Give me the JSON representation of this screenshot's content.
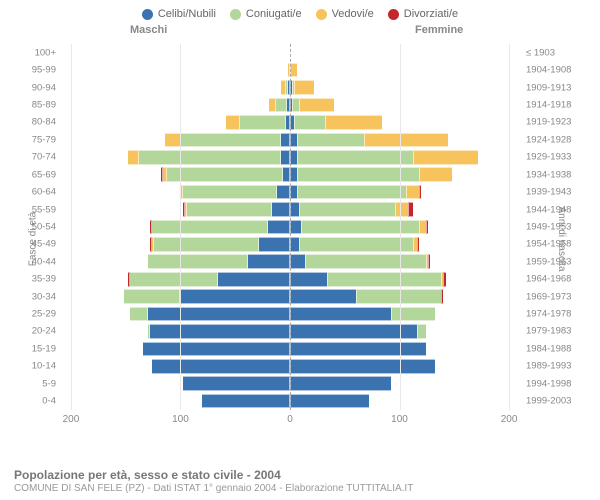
{
  "legend": [
    {
      "label": "Celibi/Nubili",
      "color": "#3b73b0"
    },
    {
      "label": "Coniugati/e",
      "color": "#b3d69b"
    },
    {
      "label": "Vedovi/e",
      "color": "#f7c35c"
    },
    {
      "label": "Divorziati/e",
      "color": "#c1282d"
    }
  ],
  "headers": {
    "male": "Maschi",
    "female": "Femmine",
    "year": "≤ 1903"
  },
  "axis_labels": {
    "left": "Fasce di età",
    "right": "Anni di nascita"
  },
  "colors": {
    "celibi": "#3b73b0",
    "coniugati": "#b3d69b",
    "vedovi": "#f7c35c",
    "divorziati": "#c1282d",
    "grid": "#e8e8e8",
    "center": "#aaaaaa",
    "text": "#888888",
    "bg": "#ffffff"
  },
  "x_ticks": [
    200,
    100,
    0,
    100,
    200
  ],
  "x_max": 210,
  "rows": [
    {
      "age": "100+",
      "year": "≤ 1903",
      "m": [
        0,
        0,
        0,
        0
      ],
      "f": [
        0,
        0,
        0,
        0
      ]
    },
    {
      "age": "95-99",
      "year": "1904-1908",
      "m": [
        0,
        0,
        2,
        0
      ],
      "f": [
        0,
        0,
        6,
        0
      ]
    },
    {
      "age": "90-94",
      "year": "1909-1913",
      "m": [
        2,
        2,
        4,
        0
      ],
      "f": [
        2,
        2,
        18,
        0
      ]
    },
    {
      "age": "85-89",
      "year": "1914-1918",
      "m": [
        3,
        10,
        6,
        0
      ],
      "f": [
        2,
        6,
        32,
        0
      ]
    },
    {
      "age": "80-84",
      "year": "1919-1923",
      "m": [
        4,
        42,
        12,
        0
      ],
      "f": [
        4,
        28,
        52,
        0
      ]
    },
    {
      "age": "75-79",
      "year": "1924-1928",
      "m": [
        8,
        92,
        14,
        0
      ],
      "f": [
        6,
        62,
        76,
        0
      ]
    },
    {
      "age": "70-74",
      "year": "1929-1933",
      "m": [
        8,
        130,
        10,
        0
      ],
      "f": [
        6,
        106,
        60,
        0
      ]
    },
    {
      "age": "65-69",
      "year": "1934-1938",
      "m": [
        6,
        106,
        4,
        2
      ],
      "f": [
        6,
        112,
        30,
        0
      ]
    },
    {
      "age": "60-64",
      "year": "1939-1943",
      "m": [
        12,
        86,
        2,
        0
      ],
      "f": [
        6,
        100,
        12,
        2
      ]
    },
    {
      "age": "55-59",
      "year": "1944-1948",
      "m": [
        16,
        78,
        2,
        2
      ],
      "f": [
        8,
        88,
        12,
        4
      ]
    },
    {
      "age": "50-54",
      "year": "1949-1953",
      "m": [
        20,
        106,
        0,
        2
      ],
      "f": [
        10,
        108,
        6,
        2
      ]
    },
    {
      "age": "45-49",
      "year": "1954-1958",
      "m": [
        28,
        96,
        2,
        2
      ],
      "f": [
        8,
        104,
        4,
        2
      ]
    },
    {
      "age": "40-44",
      "year": "1959-1963",
      "m": [
        38,
        92,
        0,
        0
      ],
      "f": [
        14,
        110,
        2,
        2
      ]
    },
    {
      "age": "35-39",
      "year": "1964-1968",
      "m": [
        66,
        80,
        0,
        2
      ],
      "f": [
        34,
        104,
        2,
        2
      ]
    },
    {
      "age": "30-34",
      "year": "1969-1973",
      "m": [
        100,
        52,
        0,
        0
      ],
      "f": [
        60,
        78,
        0,
        2
      ]
    },
    {
      "age": "25-29",
      "year": "1974-1978",
      "m": [
        130,
        16,
        0,
        0
      ],
      "f": [
        92,
        40,
        0,
        0
      ]
    },
    {
      "age": "20-24",
      "year": "1979-1983",
      "m": [
        128,
        2,
        0,
        0
      ],
      "f": [
        116,
        8,
        0,
        0
      ]
    },
    {
      "age": "15-19",
      "year": "1984-1988",
      "m": [
        134,
        0,
        0,
        0
      ],
      "f": [
        124,
        0,
        0,
        0
      ]
    },
    {
      "age": "10-14",
      "year": "1989-1993",
      "m": [
        126,
        0,
        0,
        0
      ],
      "f": [
        132,
        0,
        0,
        0
      ]
    },
    {
      "age": "5-9",
      "year": "1994-1998",
      "m": [
        98,
        0,
        0,
        0
      ],
      "f": [
        92,
        0,
        0,
        0
      ]
    },
    {
      "age": "0-4",
      "year": "1999-2003",
      "m": [
        80,
        0,
        0,
        0
      ],
      "f": [
        72,
        0,
        0,
        0
      ]
    }
  ],
  "title": "Popolazione per età, sesso e stato civile - 2004",
  "subtitle": "COMUNE DI SAN FELE (PZ) - Dati ISTAT 1° gennaio 2004 - Elaborazione TUTTITALIA.IT"
}
